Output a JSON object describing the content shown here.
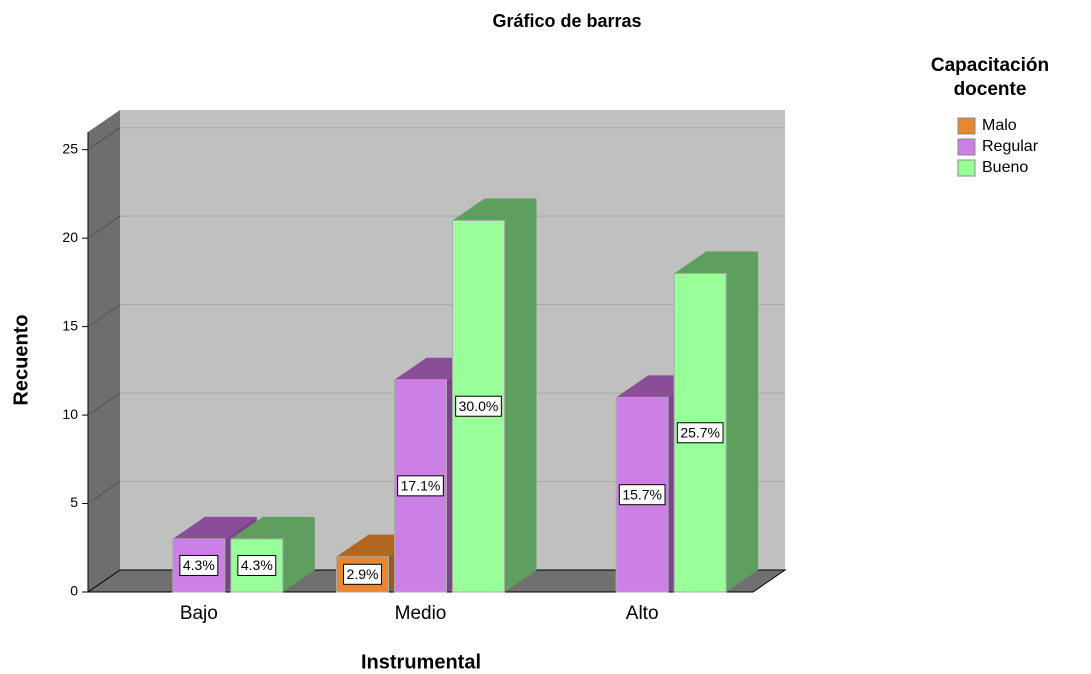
{
  "chart_data": {
    "type": "bar3d",
    "title": "Gráfico de barras",
    "x_label": "Instrumental",
    "y_label": "Recuento",
    "legend_title": [
      "Capacitación",
      "docente"
    ],
    "categories": [
      "Bajo",
      "Medio",
      "Alto"
    ],
    "series": [
      {
        "name": "Malo",
        "color": "#e8872e",
        "top_color": "#b3661f",
        "side_color": "#9a5a1c",
        "values": [
          null,
          2,
          null
        ],
        "value_labels": [
          null,
          "2.9%",
          null
        ]
      },
      {
        "name": "Regular",
        "color": "#cc80e6",
        "top_color": "#8a4e98",
        "side_color": "#7a4488",
        "values": [
          3,
          12,
          11
        ],
        "value_labels": [
          "4.3%",
          "17.1%",
          "15.7%"
        ]
      },
      {
        "name": "Bueno",
        "color": "#99ff99",
        "top_color": "#5e9e5e",
        "side_color": "#5e9e5e",
        "values": [
          3,
          21,
          18
        ],
        "value_labels": [
          "4.3%",
          "30.0%",
          "25.7%"
        ]
      }
    ],
    "ylim": [
      0,
      26
    ],
    "yticks": [
      0,
      5,
      10,
      15,
      20,
      25
    ],
    "grid": true
  }
}
